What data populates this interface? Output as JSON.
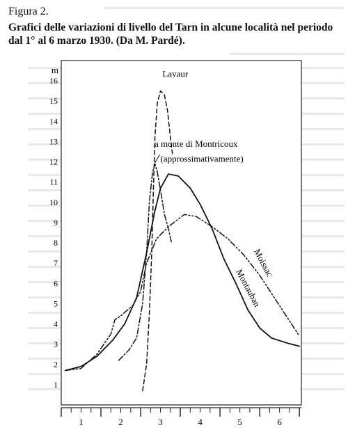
{
  "figure": {
    "label": "Figura 2.",
    "caption": "Grafici delle variazioni di livello del Tarn in alcune località nel periodo dal 1° al 6 marzo 1930. (Da M. Pardé)."
  },
  "chart_data": {
    "type": "line",
    "ylabel": "m",
    "ylim": [
      0,
      17
    ],
    "xlim": [
      0.5,
      6.55
    ],
    "y_ticks": [
      1,
      2,
      3,
      4,
      5,
      6,
      7,
      8,
      9,
      10,
      11,
      12,
      13,
      14,
      15,
      16
    ],
    "x_ticks": [
      1,
      2,
      3,
      4,
      5,
      6
    ],
    "grid": false,
    "legend": "inline labels",
    "series": [
      {
        "name": "Lavaur",
        "style": "dashed",
        "points": [
          [
            2.55,
            0.7
          ],
          [
            2.65,
            2.0
          ],
          [
            2.72,
            4.5
          ],
          [
            2.78,
            7.5
          ],
          [
            2.82,
            10.5
          ],
          [
            2.86,
            13.2
          ],
          [
            2.92,
            14.9
          ],
          [
            3.0,
            15.5
          ],
          [
            3.1,
            15.3
          ],
          [
            3.18,
            14.5
          ],
          [
            3.25,
            13.2
          ],
          [
            3.3,
            12.4
          ]
        ]
      },
      {
        "name": "a monte di Montricoux (approssimativamente)",
        "style": "dash-dot",
        "points": [
          [
            1.95,
            2.2
          ],
          [
            2.2,
            2.7
          ],
          [
            2.4,
            3.3
          ],
          [
            2.55,
            5.0
          ],
          [
            2.65,
            7.5
          ],
          [
            2.72,
            10.0
          ],
          [
            2.8,
            11.5
          ],
          [
            2.86,
            11.9
          ],
          [
            2.92,
            11.5
          ],
          [
            3.0,
            10.6
          ],
          [
            3.1,
            9.4
          ],
          [
            3.2,
            8.7
          ],
          [
            3.28,
            8.0
          ]
        ]
      },
      {
        "name": "Moissac",
        "style": "dash-dot-dot",
        "points": [
          [
            0.6,
            1.7
          ],
          [
            1.0,
            1.8
          ],
          [
            1.4,
            2.5
          ],
          [
            1.75,
            3.5
          ],
          [
            1.85,
            4.2
          ],
          [
            2.0,
            4.4
          ],
          [
            2.3,
            4.9
          ],
          [
            2.5,
            5.6
          ],
          [
            2.65,
            7.0
          ],
          [
            2.9,
            8.2
          ],
          [
            3.2,
            8.8
          ],
          [
            3.6,
            9.4
          ],
          [
            3.9,
            9.3
          ],
          [
            4.3,
            8.8
          ],
          [
            4.7,
            8.2
          ],
          [
            5.1,
            7.4
          ],
          [
            5.5,
            6.4
          ],
          [
            5.9,
            5.2
          ],
          [
            6.3,
            4.0
          ],
          [
            6.5,
            3.4
          ]
        ]
      },
      {
        "name": "Montauban",
        "style": "solid",
        "points": [
          [
            0.6,
            1.7
          ],
          [
            1.0,
            1.9
          ],
          [
            1.4,
            2.4
          ],
          [
            1.8,
            3.2
          ],
          [
            2.1,
            4.0
          ],
          [
            2.4,
            5.3
          ],
          [
            2.65,
            7.5
          ],
          [
            2.85,
            9.5
          ],
          [
            3.0,
            10.7
          ],
          [
            3.2,
            11.4
          ],
          [
            3.45,
            11.3
          ],
          [
            3.75,
            10.7
          ],
          [
            4.0,
            9.9
          ],
          [
            4.3,
            8.7
          ],
          [
            4.6,
            7.2
          ],
          [
            4.9,
            6.0
          ],
          [
            5.2,
            4.7
          ],
          [
            5.5,
            3.8
          ],
          [
            5.8,
            3.3
          ],
          [
            6.2,
            3.05
          ],
          [
            6.5,
            2.9
          ]
        ]
      }
    ],
    "annotations": [
      {
        "text": "Lavaur",
        "x": 3.05,
        "y": 16.2
      },
      {
        "text": "a monte di Montricoux",
        "x": 2.85,
        "y": 12.75
      },
      {
        "text": "(approssimativamente)",
        "x": 3.0,
        "y": 12.0
      },
      {
        "text": "Moissac",
        "x": 5.35,
        "y": 7.6
      },
      {
        "text": "Montauban",
        "x": 4.9,
        "y": 6.6
      }
    ]
  }
}
